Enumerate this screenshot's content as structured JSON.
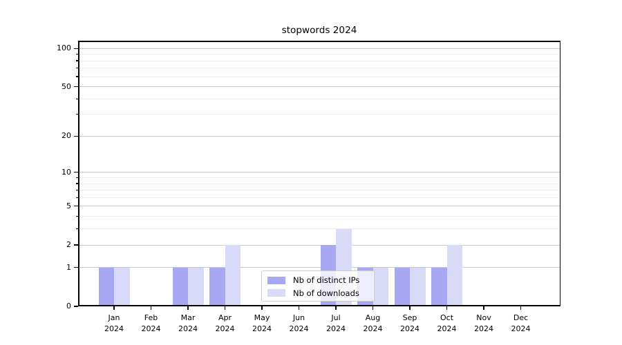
{
  "title": "stopwords 2024",
  "chart_data": {
    "type": "bar",
    "title": "stopwords 2024",
    "categories": [
      "Jan",
      "Feb",
      "Mar",
      "Apr",
      "May",
      "Jun",
      "Jul",
      "Aug",
      "Sep",
      "Oct",
      "Nov",
      "Dec"
    ],
    "year": "2024",
    "series": [
      {
        "name": "Nb of distinct IPs",
        "color": "#a7a7f3",
        "values": [
          1,
          0,
          1,
          1,
          0,
          0,
          2,
          1,
          1,
          1,
          0,
          0
        ]
      },
      {
        "name": "Nb of downloads",
        "color": "#d9d9f8",
        "values": [
          1,
          0,
          1,
          2,
          0,
          0,
          3,
          1,
          1,
          2,
          0,
          0
        ]
      }
    ],
    "xlabel": "",
    "ylabel": "",
    "yscale": "log1p",
    "yticks": [
      0,
      1,
      2,
      5,
      10,
      20,
      50,
      100
    ],
    "yminorticks": [
      3,
      4,
      6,
      7,
      8,
      9,
      30,
      40,
      60,
      70,
      80,
      90
    ],
    "ylim": [
      0,
      115
    ],
    "grid": "horizontal-on",
    "legend_position": "lower-center"
  },
  "colors": {
    "background": "#ffffff",
    "bar_distinct_ips": "#a7a7f3",
    "bar_downloads": "#d9d9f8",
    "grid_major": "#c8c8c8",
    "grid_minor": "#ececec",
    "axis": "#000000",
    "legend_border": "#cccccc"
  }
}
